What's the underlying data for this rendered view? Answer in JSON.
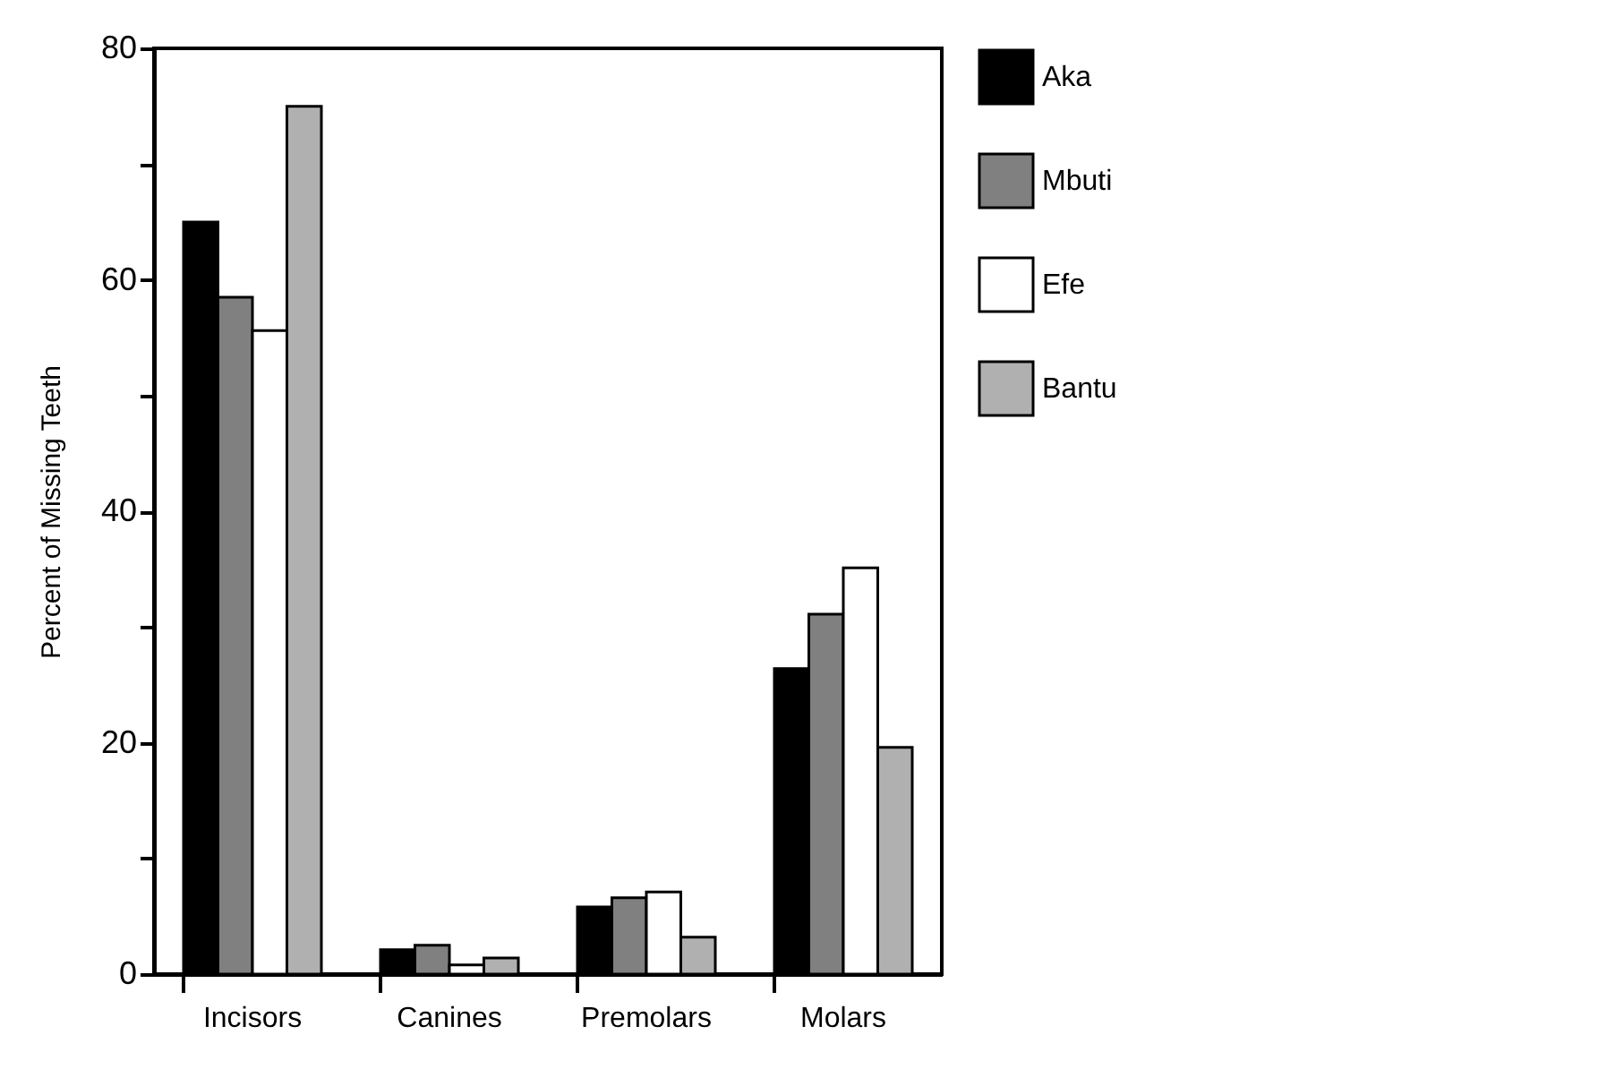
{
  "chart_data": {
    "type": "bar",
    "ylabel": "Percent of Missing Teeth",
    "categories": [
      "Incisors",
      "Canines",
      "Premolars",
      "Molars"
    ],
    "series": [
      {
        "name": "Aka",
        "color": "#000000",
        "values": [
          65,
          2.1,
          5.8,
          26.4
        ]
      },
      {
        "name": "Mbuti",
        "color": "#808080",
        "values": [
          58.5,
          2.5,
          6.6,
          31.1
        ]
      },
      {
        "name": "Efe",
        "color": "#ffffff",
        "values": [
          55.6,
          0.8,
          7.1,
          35.1
        ]
      },
      {
        "name": "Bantu",
        "color": "#b0b0b0",
        "values": [
          75,
          1.4,
          3.2,
          19.6
        ]
      }
    ],
    "ylim": [
      0,
      80
    ],
    "yticks": [
      0,
      {
        "value": 10,
        "label": null
      },
      20,
      {
        "value": 30,
        "label": null
      },
      40,
      {
        "value": 50,
        "label": null
      },
      60,
      {
        "value": 70,
        "label": null
      },
      80
    ],
    "grid": false,
    "legend": "top right"
  }
}
